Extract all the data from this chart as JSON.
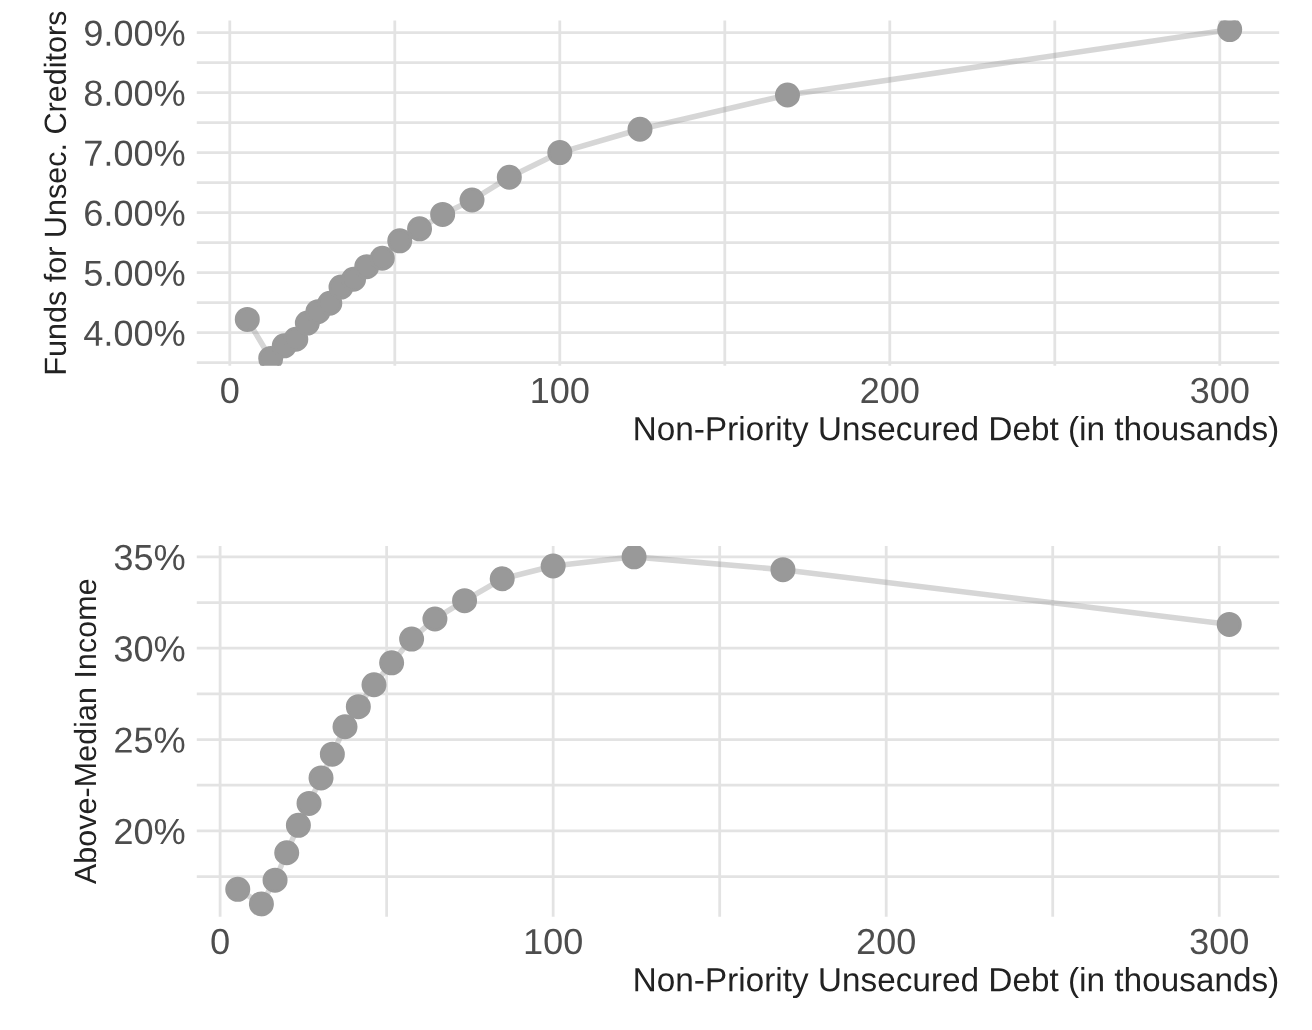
{
  "chart_data": [
    {
      "type": "line",
      "ylabel": "Funds for Unsec. Creditors",
      "xlabel": "Non-Priority Unsecured Debt (in thousands)",
      "x": [
        5.3,
        12.4,
        16.5,
        20,
        23.5,
        26.7,
        30.3,
        33.7,
        37.5,
        41.5,
        46.2,
        51.5,
        57.5,
        64.5,
        73.4,
        84.7,
        100,
        124.3,
        169,
        303
      ],
      "series": [
        {
          "color": "#999999",
          "values": [
            4.22,
            3.57,
            3.78,
            3.89,
            4.16,
            4.35,
            4.49,
            4.76,
            4.89,
            5.1,
            5.24,
            5.53,
            5.73,
            5.97,
            6.21,
            6.59,
            7.0,
            7.39,
            7.96,
            9.05
          ]
        }
      ],
      "marker": "circle",
      "line_style": "solid",
      "grid": true,
      "xlim": [
        -10,
        318
      ],
      "xticks": [
        0,
        {
          "value": 50,
          "label": null
        },
        100,
        {
          "value": 150,
          "label": null
        },
        200,
        {
          "value": 250,
          "label": null
        },
        300
      ],
      "ylim": [
        3.45,
        9.2
      ],
      "yticks": [
        {
          "value": 3.5,
          "label": null
        },
        {
          "value": 4,
          "label": "4.00%"
        },
        {
          "value": 4.5,
          "label": null
        },
        {
          "value": 5,
          "label": "5.00%"
        },
        {
          "value": 5.5,
          "label": null
        },
        {
          "value": 6,
          "label": "6.00%"
        },
        {
          "value": 6.5,
          "label": null
        },
        {
          "value": 7,
          "label": "7.00%"
        },
        {
          "value": 7.5,
          "label": null
        },
        {
          "value": 8,
          "label": "8.00%"
        },
        {
          "value": 8.5,
          "label": null
        },
        {
          "value": 9,
          "label": "9.00%"
        }
      ]
    },
    {
      "type": "line",
      "ylabel": "Above-Median Income",
      "xlabel": "Non-Priority Unsecured Debt (in thousands)",
      "x": [
        5.3,
        12.4,
        16.5,
        20,
        23.5,
        26.7,
        30.3,
        33.7,
        37.5,
        41.5,
        46.2,
        51.5,
        57.5,
        64.5,
        73.4,
        84.7,
        100,
        124.3,
        169,
        303
      ],
      "series": [
        {
          "color": "#999999",
          "values": [
            16.8,
            16.0,
            17.3,
            18.8,
            20.3,
            21.5,
            22.9,
            24.2,
            25.7,
            26.8,
            28.0,
            29.2,
            30.5,
            31.6,
            32.6,
            33.8,
            34.5,
            35.0,
            34.3,
            31.3
          ]
        }
      ],
      "marker": "circle",
      "line_style": "solid",
      "grid": true,
      "xlim": [
        -7,
        318
      ],
      "xticks": [
        0,
        {
          "value": 50,
          "label": null
        },
        100,
        {
          "value": 150,
          "label": null
        },
        200,
        {
          "value": 250,
          "label": null
        },
        300
      ],
      "ylim": [
        15.3,
        35.6
      ],
      "yticks": [
        {
          "value": 17.5,
          "label": null
        },
        {
          "value": 20,
          "label": "20%"
        },
        {
          "value": 22.5,
          "label": null
        },
        {
          "value": 25,
          "label": "25%"
        },
        {
          "value": 27.5,
          "label": null
        },
        {
          "value": 30,
          "label": "30%"
        },
        {
          "value": 32.5,
          "label": null
        },
        {
          "value": 35,
          "label": "35%"
        }
      ]
    }
  ]
}
